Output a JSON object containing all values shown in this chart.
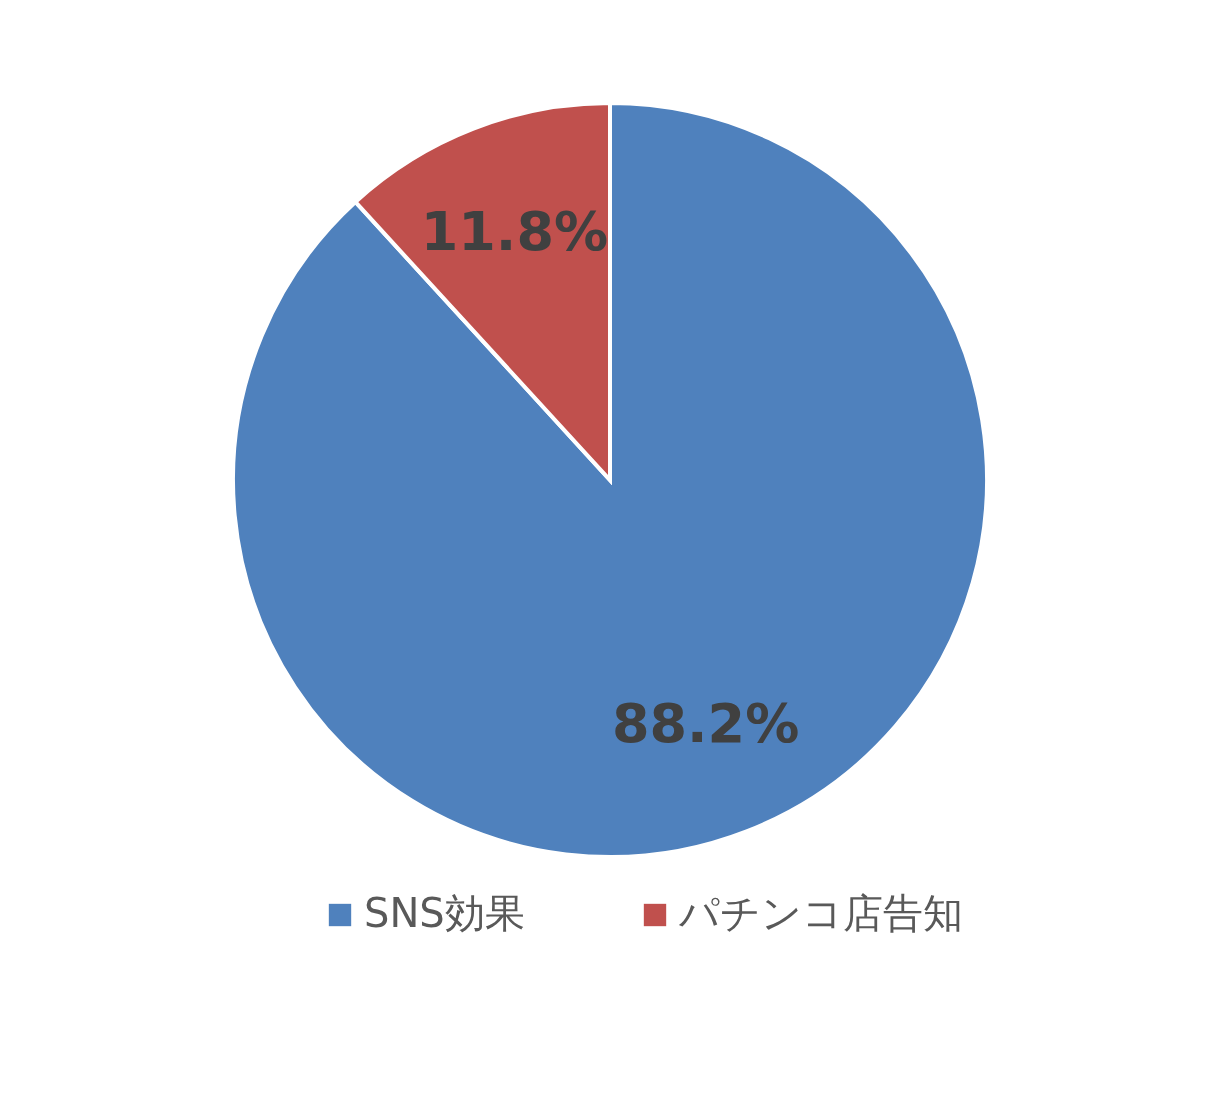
{
  "chart_data": {
    "type": "pie",
    "categories": [
      "SNS効果",
      "パチンコ店告知"
    ],
    "values": [
      88.2,
      11.8
    ],
    "colors": [
      "#4f81bd",
      "#c0504d"
    ],
    "value_labels": [
      "88.2%",
      "11.8%"
    ],
    "legend": "bottom"
  }
}
